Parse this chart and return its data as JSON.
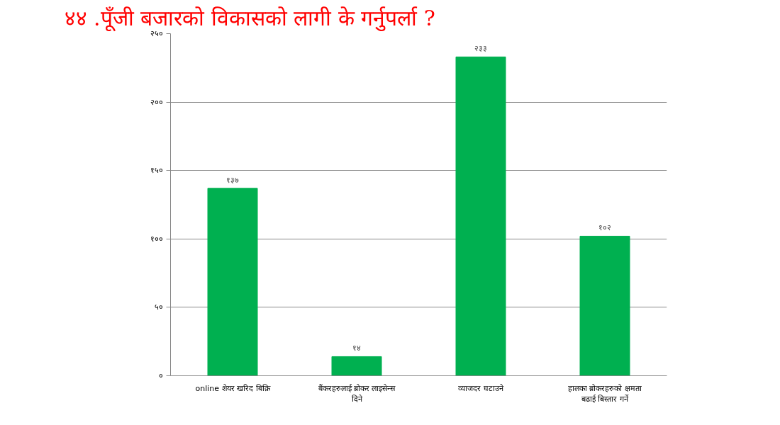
{
  "chart_data": {
    "type": "bar",
    "title": "४४ .पूँजी बजारको विकासको लागी के गर्नुपर्ला ?",
    "categories": [
      "online शेयर खरिद बिक्रि",
      "बैंकरहरुलाई ब्रोकर लाइसेन्स दिने",
      "व्याजदर घटाउने",
      "हालका ब्रोकरहरुको क्षमता बढाई बिस्तार गर्ने"
    ],
    "values": [
      137,
      14,
      233,
      102
    ],
    "color": "#00b050",
    "value_labels": [
      "१३७",
      "१४",
      "२३३",
      "१०२"
    ],
    "ylim": [
      0,
      250
    ],
    "yticks": [
      {
        "value": 0,
        "label": "०"
      },
      {
        "value": 50,
        "label": "५०"
      },
      {
        "value": 100,
        "label": "१००"
      },
      {
        "value": 150,
        "label": "१५०"
      },
      {
        "value": 200,
        "label": "२००"
      },
      {
        "value": 250,
        "label": "२५०"
      }
    ],
    "grid": "y"
  }
}
